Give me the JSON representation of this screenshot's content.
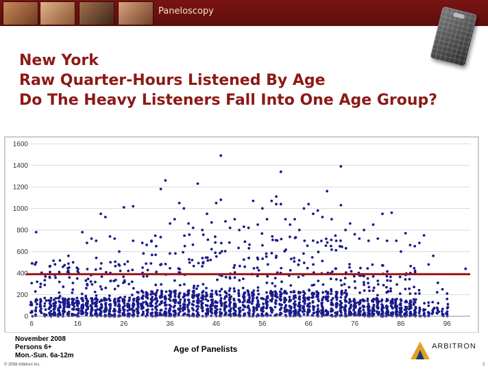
{
  "header": {
    "brand": "Paneloscopy",
    "band_color": "#6b1010",
    "photo_icons": [
      "people-photo-icon",
      "people-photo-icon",
      "people-photo-icon",
      "people-photo-icon"
    ]
  },
  "title": {
    "line1": "New York",
    "line2": "Raw Quarter-Hours Listened By Age",
    "line3": "Do The Heavy Listeners Fall Into One Age Group?",
    "color": "#8c1a16"
  },
  "chart_data": {
    "type": "scatter",
    "title": "",
    "xlabel": "Age of Panelists",
    "ylabel": "",
    "xlim": [
      6,
      101
    ],
    "ylim": [
      0,
      1600
    ],
    "x_ticks": [
      6,
      16,
      26,
      36,
      46,
      56,
      66,
      76,
      86,
      96
    ],
    "y_ticks": [
      0,
      200,
      400,
      600,
      800,
      1000,
      1200,
      1400,
      1600
    ],
    "grid": "horizontal",
    "marker_color": "#1a1a8c",
    "reference_line": {
      "y": 390,
      "color": "#a01818"
    },
    "series": [
      {
        "points": [
          [
            7,
            780
          ],
          [
            7,
            500
          ],
          [
            8,
            300
          ],
          [
            10,
            410
          ],
          [
            12,
            410
          ],
          [
            14,
            560
          ],
          [
            15,
            500
          ],
          [
            17,
            780
          ],
          [
            18,
            680
          ],
          [
            19,
            720
          ],
          [
            20,
            700
          ],
          [
            21,
            950
          ],
          [
            22,
            920
          ],
          [
            23,
            740
          ],
          [
            24,
            720
          ],
          [
            25,
            600
          ],
          [
            26,
            1010
          ],
          [
            28,
            1020
          ],
          [
            28,
            700
          ],
          [
            30,
            680
          ],
          [
            32,
            700
          ],
          [
            33,
            650
          ],
          [
            34,
            1180
          ],
          [
            35,
            1260
          ],
          [
            36,
            860
          ],
          [
            37,
            900
          ],
          [
            38,
            1050
          ],
          [
            39,
            1000
          ],
          [
            40,
            860
          ],
          [
            41,
            820
          ],
          [
            42,
            1230
          ],
          [
            43,
            800
          ],
          [
            44,
            950
          ],
          [
            45,
            870
          ],
          [
            46,
            1050
          ],
          [
            47,
            1080
          ],
          [
            47,
            1490
          ],
          [
            48,
            880
          ],
          [
            49,
            820
          ],
          [
            50,
            900
          ],
          [
            51,
            800
          ],
          [
            52,
            830
          ],
          [
            53,
            820
          ],
          [
            54,
            1070
          ],
          [
            55,
            850
          ],
          [
            56,
            1000
          ],
          [
            57,
            900
          ],
          [
            58,
            1070
          ],
          [
            59,
            1040
          ],
          [
            59,
            1110
          ],
          [
            60,
            1340
          ],
          [
            60,
            1040
          ],
          [
            61,
            900
          ],
          [
            62,
            850
          ],
          [
            63,
            900
          ],
          [
            64,
            800
          ],
          [
            65,
            1000
          ],
          [
            66,
            1040
          ],
          [
            67,
            950
          ],
          [
            68,
            980
          ],
          [
            69,
            920
          ],
          [
            70,
            1160
          ],
          [
            71,
            900
          ],
          [
            72,
            700
          ],
          [
            73,
            1030
          ],
          [
            73,
            1390
          ],
          [
            74,
            800
          ],
          [
            75,
            860
          ],
          [
            76,
            760
          ],
          [
            77,
            720
          ],
          [
            78,
            800
          ],
          [
            79,
            700
          ],
          [
            80,
            850
          ],
          [
            81,
            720
          ],
          [
            82,
            950
          ],
          [
            83,
            700
          ],
          [
            84,
            960
          ],
          [
            85,
            700
          ],
          [
            86,
            600
          ],
          [
            87,
            770
          ],
          [
            88,
            660
          ],
          [
            89,
            650
          ],
          [
            90,
            680
          ],
          [
            91,
            750
          ],
          [
            92,
            480
          ],
          [
            93,
            560
          ],
          [
            94,
            310
          ],
          [
            95,
            250
          ],
          [
            96,
            160
          ],
          [
            96,
            210
          ],
          [
            100,
            440
          ]
        ]
      }
    ]
  },
  "notes": {
    "line1": "November 2008",
    "line2": "Persons 6+",
    "line3": "Mon.-Sun. 6a-12m"
  },
  "logo": {
    "text": "ARBITRON",
    "icon": "arbitron-logo-icon"
  },
  "footer": {
    "copyright": "© 2008 Arbitron Inc.",
    "page": "2"
  },
  "device_icon": "portable-people-meter-icon"
}
